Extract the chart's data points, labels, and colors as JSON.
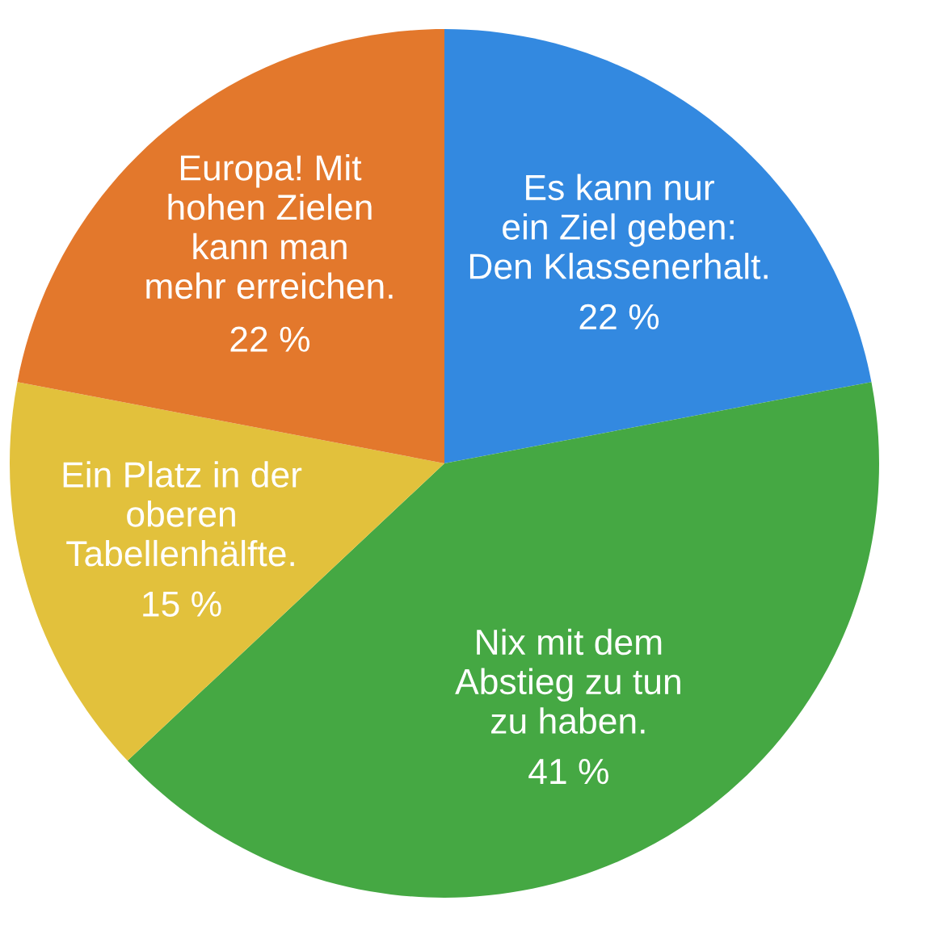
{
  "chart_data": {
    "type": "pie",
    "categories": [
      "Es kann nur\nein Ziel geben:\nDen Klassenerhalt.",
      "Nix mit dem\nAbstieg zu tun\nzu haben.",
      "Ein Platz in der\noberen\nTabellenhälfte.",
      "Europa! Mit\nhohen Zielen\nkann man\nmehr erreichen."
    ],
    "values": [
      22,
      41,
      15,
      22
    ],
    "value_labels": [
      "22 %",
      "41 %",
      "15 %",
      "22 %"
    ],
    "colors": [
      "#3389e0",
      "#45a843",
      "#e2c13c",
      "#e3782c"
    ]
  }
}
